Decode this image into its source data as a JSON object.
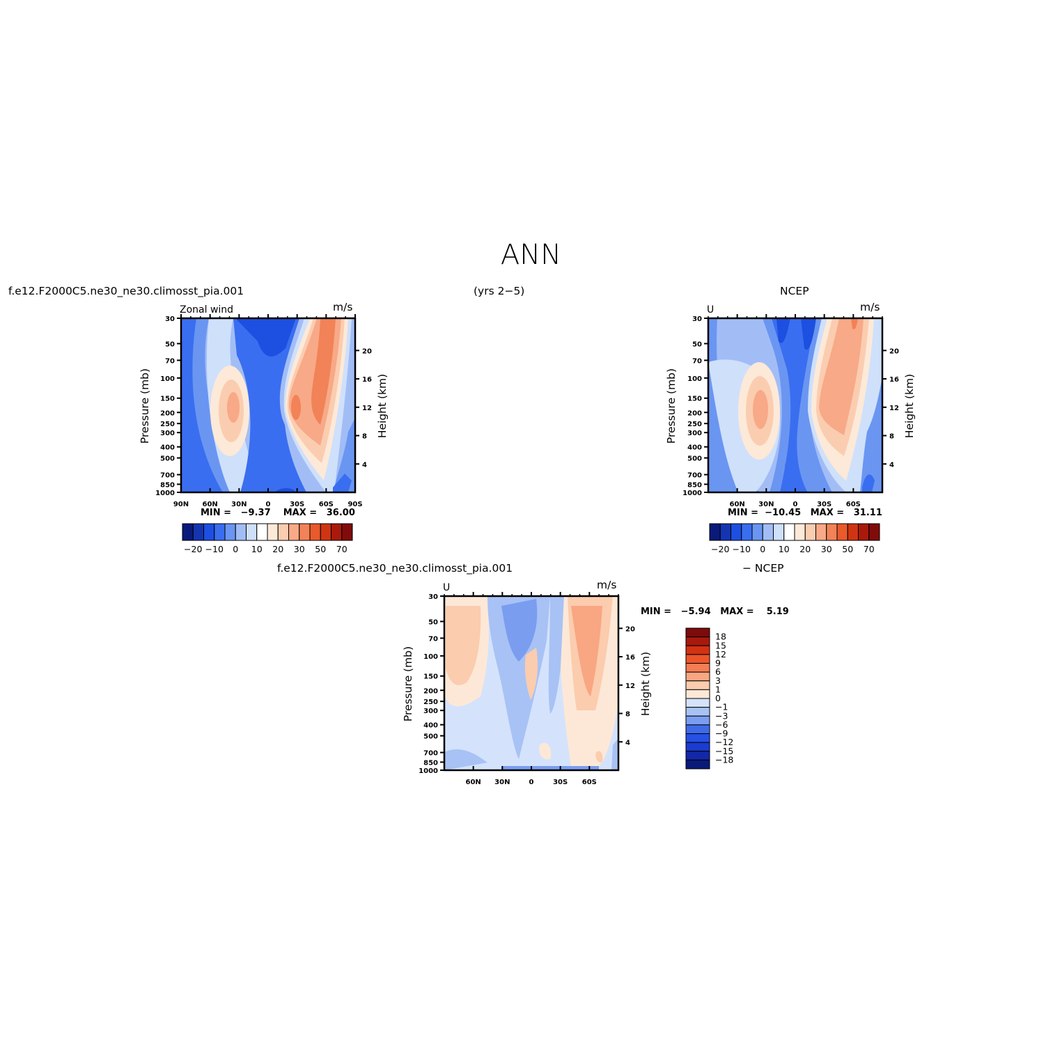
{
  "figure": {
    "title": "ANN",
    "years_label": "(yrs 2−5)"
  },
  "colors": {
    "abs_palette": [
      "#0a1a7a",
      "#1534b0",
      "#1d4fe0",
      "#3a6ef0",
      "#6a96f2",
      "#a2bdf6",
      "#cfe0fb",
      "#ffffff",
      "#fde9d8",
      "#fbcdb0",
      "#f8a987",
      "#f28257",
      "#e95a2c",
      "#cf3512",
      "#a91a0c",
      "#800b0b"
    ],
    "diff_palette": [
      "#0a1a7a",
      "#1228a8",
      "#1a3cd0",
      "#2650e6",
      "#3f6be9",
      "#7b9df0",
      "#a8c2f5",
      "#d4e3fb",
      "#fde8d8",
      "#fbccae",
      "#f9a682",
      "#f47d52",
      "#ec5529",
      "#d23212",
      "#a8190d",
      "#7d0b0b"
    ]
  },
  "chart_data": [
    {
      "type": "heatmap",
      "panel": "model",
      "title": "f.e12.F2000C5.ne30_ne30.climosst_pia.001",
      "subtitle": "Zonal wind",
      "units": "m/s",
      "ylabel": "Pressure (mb)",
      "ylabel_right": "Height (km)",
      "y_ticks": [
        "30",
        "50",
        "70",
        "100",
        "150",
        "200",
        "250",
        "300",
        "400",
        "500",
        "700",
        "850",
        "1000"
      ],
      "y_right_ticks": [
        "4",
        "8",
        "12",
        "16",
        "20"
      ],
      "x_ticks": [
        "90N",
        "60N",
        "30N",
        "0",
        "30S",
        "60S",
        "90S"
      ],
      "ylim": [
        1000,
        30
      ],
      "stats": {
        "min_label": "MIN =",
        "min": "−9.37",
        "max_label": "MAX =",
        "max": "36.00"
      },
      "colorbar": {
        "orientation": "horizontal",
        "labels": [
          "−20",
          "−10",
          "0",
          "10",
          "20",
          "30",
          "50",
          "70"
        ]
      }
    },
    {
      "type": "heatmap",
      "panel": "obs",
      "title": "NCEP",
      "subtitle": "U",
      "units": "m/s",
      "ylabel": "Pressure (mb)",
      "ylabel_right": "Height (km)",
      "y_ticks": [
        "30",
        "50",
        "70",
        "100",
        "150",
        "200",
        "250",
        "300",
        "400",
        "500",
        "700",
        "850",
        "1000"
      ],
      "y_right_ticks": [
        "4",
        "8",
        "12",
        "16",
        "20"
      ],
      "x_ticks": [
        "60N",
        "30N",
        "0",
        "30S",
        "60S"
      ],
      "ylim": [
        1000,
        30
      ],
      "stats": {
        "min_label": "MIN =",
        "min": "−10.45",
        "max_label": "MAX =",
        "max": "31.11"
      },
      "colorbar": {
        "orientation": "horizontal",
        "labels": [
          "−20",
          "−10",
          "0",
          "10",
          "20",
          "30",
          "50",
          "70"
        ]
      }
    },
    {
      "type": "heatmap",
      "panel": "difference",
      "title": "f.e12.F2000C5.ne30_ne30.climosst_pia.001",
      "title_right": "− NCEP",
      "subtitle": "U",
      "units": "m/s",
      "ylabel": "Pressure (mb)",
      "ylabel_right": "Height (km)",
      "y_ticks": [
        "30",
        "50",
        "70",
        "100",
        "150",
        "200",
        "250",
        "300",
        "400",
        "500",
        "700",
        "850",
        "1000"
      ],
      "y_right_ticks": [
        "4",
        "8",
        "12",
        "16",
        "20"
      ],
      "x_ticks": [
        "60N",
        "30N",
        "0",
        "30S",
        "60S"
      ],
      "ylim": [
        1000,
        30
      ],
      "stats": {
        "min_label": "MIN =",
        "min": "−5.94",
        "max_label": "MAX =",
        "max": "5.19"
      },
      "colorbar": {
        "orientation": "vertical",
        "labels": [
          "18",
          "15",
          "12",
          "9",
          "6",
          "3",
          "1",
          "0",
          "−1",
          "−3",
          "−6",
          "−9",
          "−12",
          "−15",
          "−18"
        ]
      }
    }
  ]
}
